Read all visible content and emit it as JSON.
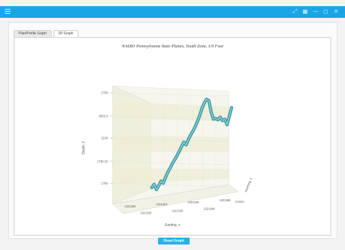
{
  "window": {
    "controls": [
      {
        "name": "arrow-expand-icon",
        "glyph": "⤢"
      },
      {
        "name": "grid-icon",
        "glyph": "▦"
      },
      {
        "name": "minimize-icon",
        "glyph": "—"
      },
      {
        "name": "maximize-icon",
        "glyph": "◻"
      },
      {
        "name": "close-icon",
        "glyph": "✕"
      }
    ],
    "accent_color": "#1aa6e6"
  },
  "tabs": [
    {
      "label": "Plan/Profile Graph",
      "active": false
    },
    {
      "label": "3D Graph",
      "active": true
    }
  ],
  "chart_data": {
    "type": "line",
    "title": "NAD83 Pennsylvania State Planes, South Zone, US Foot",
    "xlabel": "Easting, x",
    "ylabel": "Depth, Z",
    "zlabel": "Northing, y",
    "y_ticks": [
      "1790",
      "1802.5",
      "1100",
      "1736.25",
      "1780"
    ],
    "x_ticks": [
      "1321280",
      "1321300",
      "1321310",
      "1321320",
      "1321330",
      "1321340",
      "1321350"
    ],
    "z_ticks": [
      "205850"
    ],
    "series_color": "#2e9aa6",
    "y": [
      1782,
      1787,
      1779,
      1785,
      1792,
      1789,
      1798,
      1806,
      1812,
      1819,
      1825,
      1831,
      1838,
      1845,
      1852,
      1848,
      1856,
      1863,
      1869,
      1876,
      1884,
      1893,
      1904,
      1912,
      1918,
      1916,
      1899,
      1888,
      1889,
      1887,
      1891,
      1886,
      1888,
      1880,
      1893,
      1906
    ]
  },
  "footer": {
    "button_label": "Reset Graph"
  }
}
